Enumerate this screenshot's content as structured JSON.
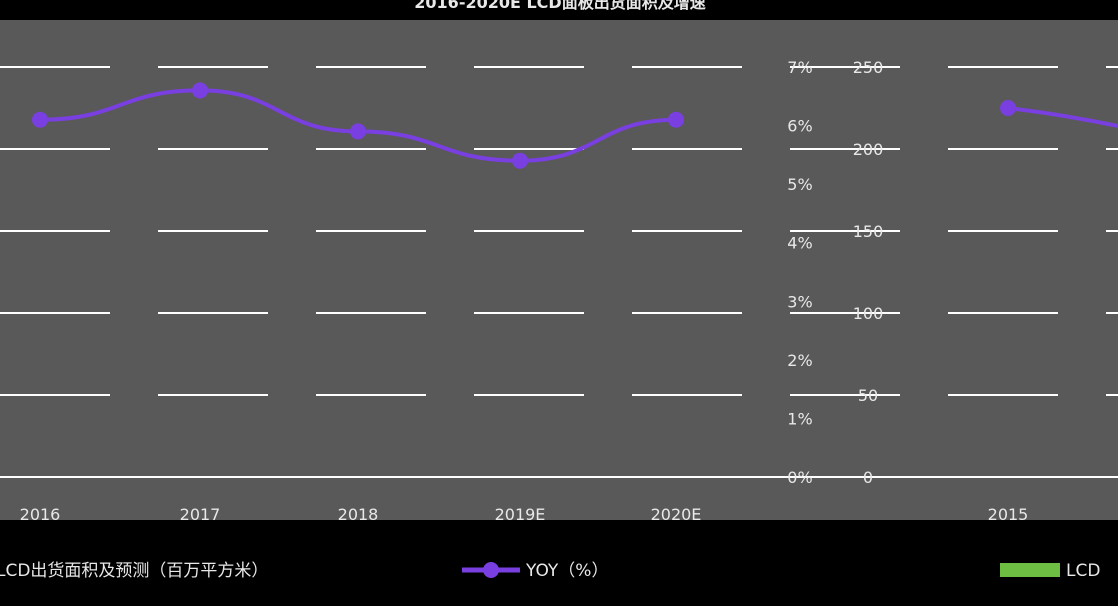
{
  "title": "2016-2020E LCD面板出货面积及增速",
  "legend": {
    "area_series": "LCD出货面积及预测（百万平方米）",
    "yoy_series": "YOY（%）",
    "lcd_series": "LCD"
  },
  "colors": {
    "background": "#000000",
    "plot_bg": "#595959",
    "grid": "#ffffff",
    "yoy_line": "#7a3fe0",
    "lcd_bar": "#6fbe44",
    "text": "#e8e8e8"
  },
  "chart_data": [
    {
      "type": "line",
      "title": "",
      "categories": [
        "2016",
        "2017",
        "2018",
        "2019E",
        "2020E"
      ],
      "series": [
        {
          "name": "YOY（%）",
          "values": [
            6.1,
            6.6,
            5.9,
            5.4,
            6.1
          ]
        }
      ],
      "y2_ticks": [
        "0%",
        "1%",
        "2%",
        "3%",
        "4%",
        "5%",
        "6%",
        "7%"
      ],
      "y2lim": [
        0,
        7
      ],
      "y_ticks": [
        "0",
        "50",
        "100",
        "150",
        "200",
        "250"
      ],
      "ylim": [
        0,
        250
      ],
      "grid": true,
      "legend_position": "bottom"
    },
    {
      "type": "line",
      "title": "",
      "categories": [
        "2015"
      ],
      "series": [
        {
          "name": "YOY（%）",
          "values": [
            6.3
          ]
        }
      ],
      "grid": true,
      "legend_position": "bottom"
    }
  ]
}
